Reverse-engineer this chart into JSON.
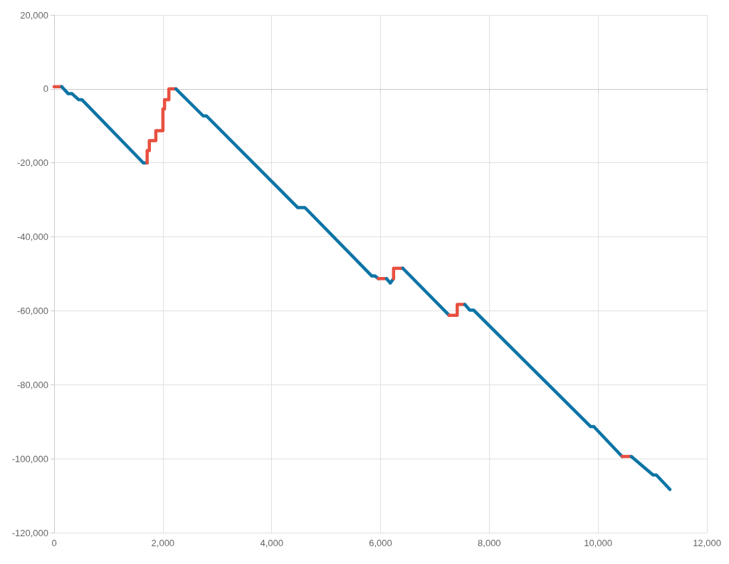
{
  "chart_data": {
    "type": "line",
    "xlim": [
      0,
      12000
    ],
    "xticks": [
      {
        "value": 0,
        "label": "0"
      },
      {
        "value": 2000,
        "label": "2,000"
      },
      {
        "value": 4000,
        "label": "4,000"
      },
      {
        "value": 6000,
        "label": "6,000"
      },
      {
        "value": 8000,
        "label": "8,000"
      },
      {
        "value": 10000,
        "label": "10,000"
      },
      {
        "value": 12000,
        "label": "12,000"
      }
    ],
    "ylim": [
      -120000,
      20000
    ],
    "yticks": [
      {
        "value": -120000,
        "label": "-120,000"
      },
      {
        "value": -100000,
        "label": "-100,000"
      },
      {
        "value": -80000,
        "label": "-80,000"
      },
      {
        "value": -60000,
        "label": "-60,000"
      },
      {
        "value": -40000,
        "label": "-40,000"
      },
      {
        "value": -20000,
        "label": "-20,000"
      },
      {
        "value": 0,
        "label": "0"
      },
      {
        "value": 20000,
        "label": "20,000"
      }
    ],
    "grid": true,
    "marker": "none",
    "line_style": "solid",
    "series": [
      {
        "color": "#e8503f",
        "x": [
          0,
          140
        ],
        "values": [
          600,
          600
        ]
      },
      {
        "color": "#0d74a6",
        "x": [
          140,
          260,
          330,
          450,
          510,
          1640,
          1710
        ],
        "values": [
          600,
          -1300,
          -1300,
          -2900,
          -2900,
          -20000,
          -20000
        ]
      },
      {
        "color": "#e8503f",
        "x": [
          1710,
          1710,
          1750,
          1750,
          1870,
          1870,
          2000,
          2000,
          2030,
          2030,
          2110,
          2110,
          2240
        ],
        "values": [
          -20000,
          -16700,
          -16700,
          -14000,
          -14000,
          -11300,
          -11300,
          -5400,
          -5400,
          -2900,
          -2900,
          0,
          0
        ]
      },
      {
        "color": "#0d74a6",
        "x": [
          2240,
          2740,
          2800,
          4480,
          4610,
          5840,
          5900,
          5960
        ],
        "values": [
          0,
          -7300,
          -7300,
          -32100,
          -32100,
          -50600,
          -50600,
          -51300
        ]
      },
      {
        "color": "#e8503f",
        "x": [
          5960,
          6110
        ],
        "values": [
          -51300,
          -51300
        ]
      },
      {
        "color": "#0d74a6",
        "x": [
          6110,
          6180,
          6240
        ],
        "values": [
          -51300,
          -52500,
          -51300
        ]
      },
      {
        "color": "#e8503f",
        "x": [
          6240,
          6240,
          6410
        ],
        "values": [
          -51300,
          -48500,
          -48500
        ]
      },
      {
        "color": "#0d74a6",
        "x": [
          6410,
          7260
        ],
        "values": [
          -48500,
          -61200
        ]
      },
      {
        "color": "#e8503f",
        "x": [
          7260,
          7410,
          7410,
          7550
        ],
        "values": [
          -61200,
          -61200,
          -58300,
          -58300
        ]
      },
      {
        "color": "#0d74a6",
        "x": [
          7550,
          7640,
          7710,
          9860,
          9920,
          10440
        ],
        "values": [
          -58300,
          -59800,
          -59800,
          -91300,
          -91300,
          -99400
        ]
      },
      {
        "color": "#e8503f",
        "x": [
          10440,
          10610
        ],
        "values": [
          -99400,
          -99400
        ]
      },
      {
        "color": "#0d74a6",
        "x": [
          10610,
          11010,
          11070,
          11320
        ],
        "values": [
          -99400,
          -104400,
          -104400,
          -108300
        ]
      }
    ]
  }
}
